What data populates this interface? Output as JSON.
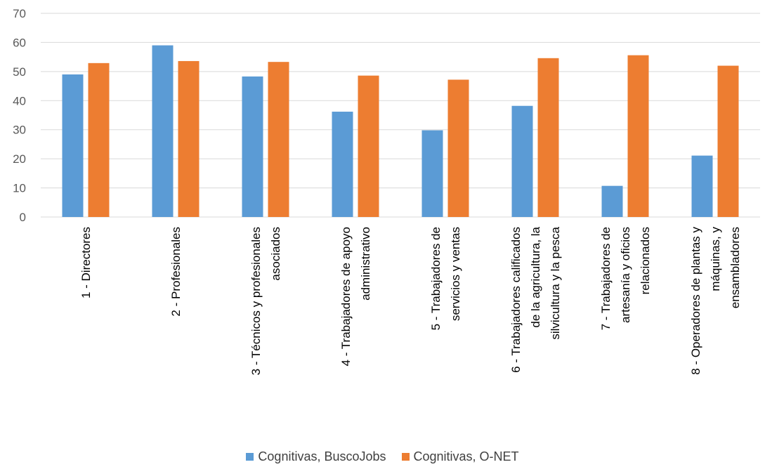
{
  "chart_data": {
    "type": "bar",
    "categories": [
      [
        "1 - Directores"
      ],
      [
        "2 - Profesionales"
      ],
      [
        "3 - Técnicos y profesionales",
        "asociados"
      ],
      [
        "4 - Trabajadores de apoyo",
        "administrativo"
      ],
      [
        "5 - Trabajadores de",
        "servicios y ventas"
      ],
      [
        "6 - Trabajadores calificados",
        "de la agricultura, la",
        "silvicultura y la pesca"
      ],
      [
        "7 - Trabajadores de",
        "artesanía y oficios",
        "relacionados"
      ],
      [
        "8 - Operadores de plantas y",
        "máquinas, y",
        "ensambladores"
      ]
    ],
    "series": [
      {
        "name": "Cognitivas, BuscoJobs",
        "color": "#5B9BD5",
        "values": [
          49,
          59,
          48.3,
          36.2,
          29.8,
          38.2,
          10.7,
          21.1
        ]
      },
      {
        "name": "Cognitivas, O-NET",
        "color": "#ED7D31",
        "values": [
          52.9,
          53.6,
          53.3,
          48.6,
          47.2,
          54.6,
          55.6,
          52
        ]
      }
    ],
    "ylim": [
      0,
      70
    ],
    "yticks": [
      0,
      10,
      20,
      30,
      40,
      50,
      60,
      70
    ],
    "grid": true,
    "legend_position": "bottom",
    "title": "",
    "xlabel": "",
    "ylabel": ""
  }
}
